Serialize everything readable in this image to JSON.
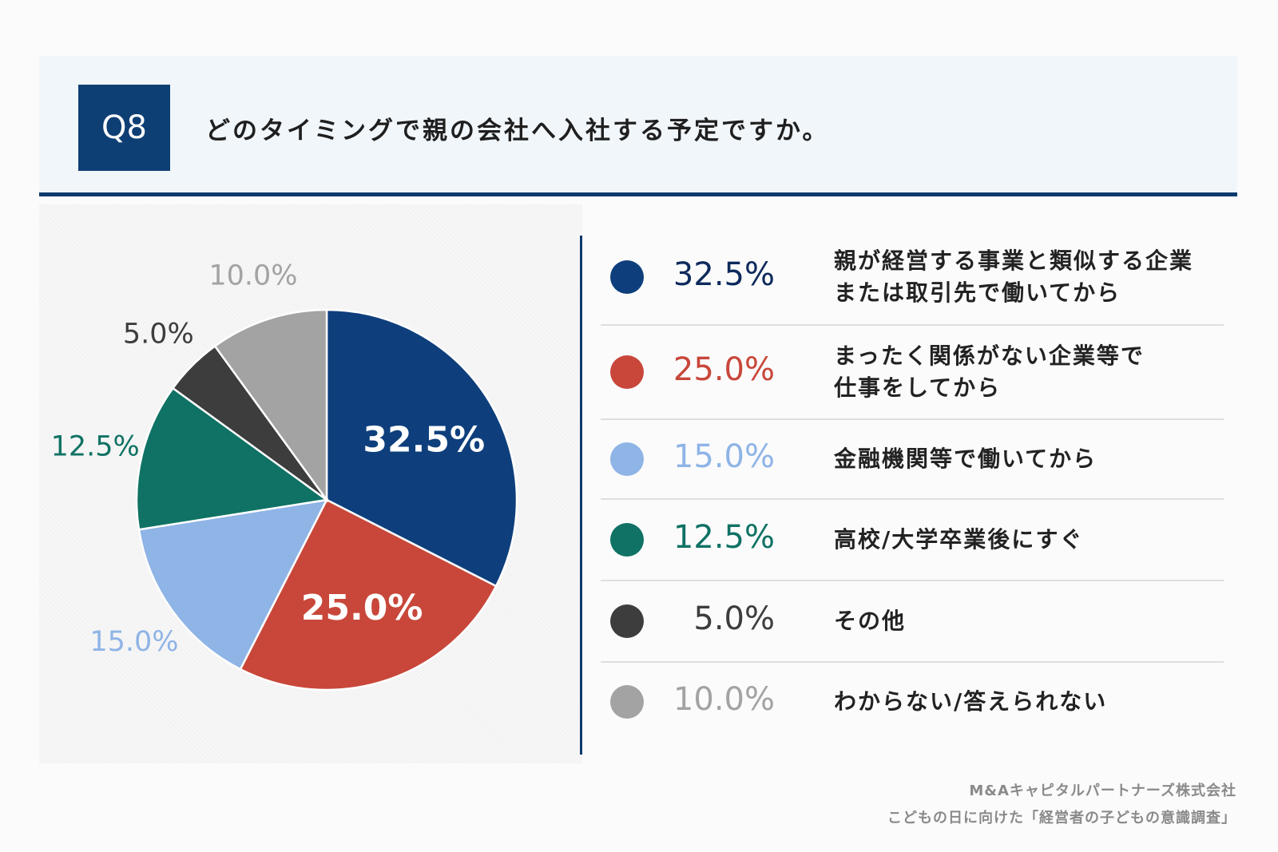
{
  "header": {
    "badge": "Q8",
    "question": "どのタイミングで親の会社へ入社する予定ですか。"
  },
  "colors": {
    "navy": "#0d3a6c",
    "header_bg": "#f1f6fb"
  },
  "chart_data": {
    "type": "pie",
    "slices": [
      {
        "value": 32.5,
        "label": "32.5%",
        "color": "#0e3f7c",
        "text_color": "#0e2a5c",
        "legend_label_lines": [
          "親が経営する事業と類似する企業",
          "または取引先で働いてから"
        ]
      },
      {
        "value": 25.0,
        "label": "25.0%",
        "color": "#c8473a",
        "text_color": "#c8473a",
        "legend_label_lines": [
          "まったく関係がない企業等で",
          "仕事をしてから"
        ]
      },
      {
        "value": 15.0,
        "label": "15.0%",
        "color": "#8fb4e6",
        "text_color": "#8fb4e6",
        "legend_label_lines": [
          "金融機関等で働いてから"
        ]
      },
      {
        "value": 12.5,
        "label": "12.5%",
        "color": "#0f7264",
        "text_color": "#0f7264",
        "legend_label_lines": [
          "高校/大学卒業後にすぐ"
        ]
      },
      {
        "value": 5.0,
        "label": "5.0%",
        "color": "#3d3d3d",
        "text_color": "#3d3d3d",
        "legend_label_lines": [
          "その他"
        ]
      },
      {
        "value": 10.0,
        "label": "10.0%",
        "color": "#a3a3a3",
        "text_color": "#a3a3a3",
        "legend_label_lines": [
          "わからない/答えられない"
        ]
      }
    ]
  },
  "footer": {
    "company": "M&Aキャピタルパートナーズ株式会社",
    "survey": "こどもの日に向けた「経営者の子どもの意識調査」"
  }
}
